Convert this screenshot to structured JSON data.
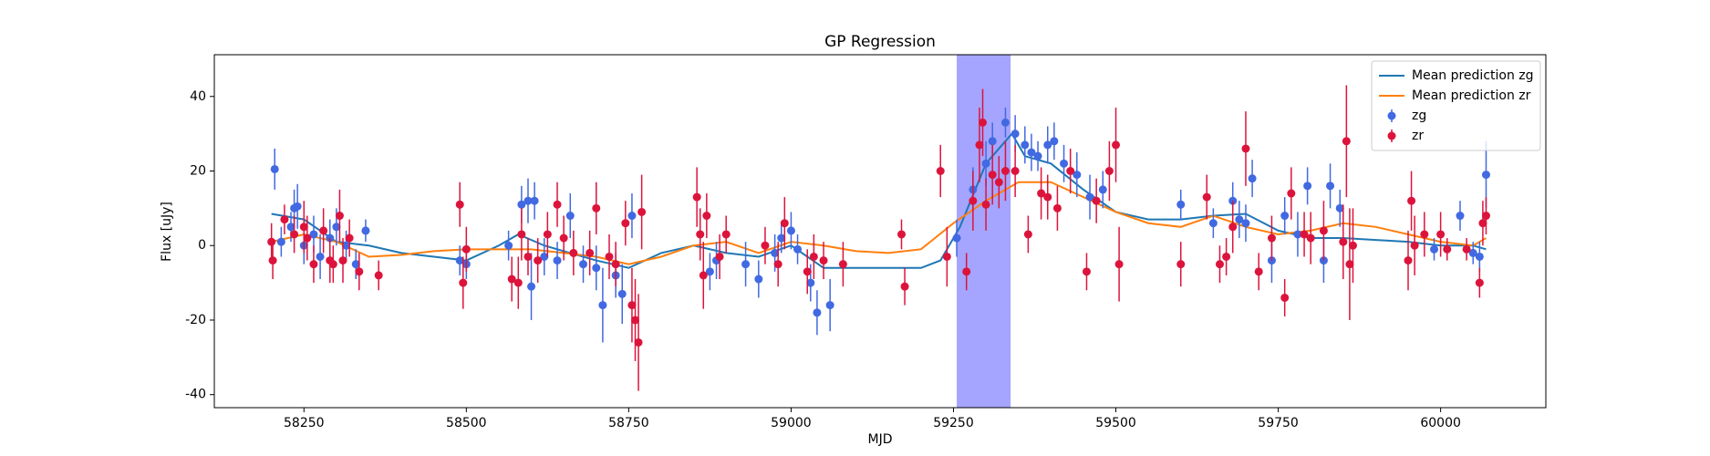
{
  "chart_data": {
    "type": "gp-regression",
    "title": "GP Regression",
    "x_label": "MJD",
    "y_label": "Flux [uJy]",
    "xlim": [
      58112,
      60162
    ],
    "ylim": [
      -43.5,
      51.2
    ],
    "xticks": [
      58250,
      58500,
      58750,
      59000,
      59250,
      59500,
      59750,
      60000
    ],
    "yticks": [
      -40,
      -20,
      0,
      20,
      40
    ],
    "legend": "upper right",
    "grid": false,
    "shaded_region": {
      "x": [
        59255,
        59338
      ],
      "color": "#a5a5ff"
    },
    "series": [
      {
        "name": "Mean prediction zg",
        "style": "line",
        "color": "#1f77b4",
        "x": [
          58200,
          58250,
          58300,
          58350,
          58400,
          58450,
          58500,
          58550,
          58580,
          58620,
          58660,
          58700,
          58750,
          58800,
          58850,
          58900,
          58950,
          59000,
          59050,
          59100,
          59150,
          59200,
          59230,
          59260,
          59300,
          59340,
          59360,
          59400,
          59450,
          59500,
          59550,
          59600,
          59650,
          59700,
          59750,
          59800,
          59850,
          59900,
          59950,
          60000,
          60050,
          60070
        ],
        "values": [
          8.5,
          7,
          1,
          0,
          -2,
          -3,
          -4,
          0,
          3,
          0,
          -2,
          -4,
          -6,
          -2,
          0,
          -2,
          -3,
          0,
          -6,
          -6,
          -6,
          -6,
          -4,
          5,
          22,
          30,
          24,
          22,
          15,
          9,
          7,
          7,
          8,
          8.5,
          4,
          2,
          2,
          1.5,
          1,
          0,
          0,
          -1
        ]
      },
      {
        "name": "Mean prediction zr",
        "style": "line",
        "color": "#ff7f0e",
        "x": [
          58200,
          58250,
          58300,
          58350,
          58400,
          58450,
          58500,
          58550,
          58600,
          58650,
          58700,
          58750,
          58800,
          58850,
          58900,
          58950,
          59000,
          59050,
          59100,
          59150,
          59200,
          59250,
          59300,
          59350,
          59400,
          59450,
          59500,
          59550,
          59600,
          59650,
          59700,
          59750,
          59800,
          59850,
          59900,
          59950,
          60000,
          60050,
          60070
        ],
        "values": [
          1,
          3,
          1,
          -3,
          -2.5,
          -1.5,
          -1,
          -1,
          -1,
          -2,
          -3,
          -5,
          -3,
          0,
          1,
          -2,
          1,
          0,
          -1.5,
          -2,
          -1,
          6,
          12,
          17,
          17,
          13,
          9,
          6,
          5,
          8,
          5,
          3,
          4,
          6,
          5,
          3,
          1,
          0,
          2
        ]
      },
      {
        "name": "zg",
        "style": "errorbar",
        "color": "#4169e1",
        "x": [
          58205,
          58215,
          58230,
          58235,
          58240,
          58250,
          58265,
          58275,
          58290,
          58300,
          58315,
          58330,
          58345,
          58490,
          58500,
          58565,
          58585,
          58595,
          58605,
          58600,
          58620,
          58640,
          58660,
          58680,
          58700,
          58710,
          58730,
          58740,
          58755,
          58875,
          58885,
          58930,
          58950,
          58975,
          58985,
          59000,
          59010,
          59030,
          59040,
          59060,
          59255,
          59280,
          59300,
          59310,
          59330,
          59345,
          59360,
          59370,
          59380,
          59395,
          59405,
          59420,
          59440,
          59460,
          59480,
          59600,
          59650,
          59680,
          59690,
          59700,
          59710,
          59740,
          59760,
          59780,
          59795,
          59820,
          59830,
          59845,
          59990,
          60030,
          60050,
          60060,
          60070
        ],
        "values": [
          20.5,
          1,
          5,
          10,
          10.5,
          0,
          3,
          -3,
          2,
          5,
          0,
          -5,
          4,
          -4,
          -5,
          0,
          11,
          12,
          12,
          -11,
          -3,
          -4,
          8,
          -5,
          -6,
          -16,
          -8,
          -13,
          8,
          -7,
          -4,
          -5,
          -9,
          -2,
          2,
          4,
          -1,
          -10,
          -18,
          -16,
          2,
          15,
          22,
          28,
          33,
          30,
          27,
          25,
          24,
          27,
          28,
          22,
          19,
          13,
          15,
          11,
          6,
          12,
          7,
          6,
          18,
          -4,
          8,
          3,
          16,
          -4,
          16,
          10,
          -1,
          8,
          -2,
          -3,
          19
        ],
        "errors": [
          5.5,
          4,
          4,
          5,
          6,
          5,
          5,
          6,
          5,
          5,
          4,
          4,
          3,
          4,
          4,
          4,
          5,
          6,
          5,
          9,
          5,
          5,
          6,
          5,
          6,
          10,
          6,
          8,
          6,
          5,
          5,
          6,
          5,
          5,
          4,
          5,
          4,
          5,
          6,
          7,
          5,
          6,
          6,
          5,
          4,
          5,
          5,
          5,
          4,
          5,
          5,
          5,
          6,
          6,
          5,
          4,
          4,
          5,
          5,
          5,
          5,
          6,
          5,
          6,
          5,
          6,
          6,
          5,
          3,
          4,
          3,
          4,
          9
        ]
      },
      {
        "name": "zr",
        "style": "errorbar",
        "color": "#dc143c",
        "x": [
          58200,
          58202,
          58220,
          58235,
          58250,
          58255,
          58265,
          58280,
          58290,
          58295,
          58305,
          58310,
          58320,
          58335,
          58365,
          58490,
          58495,
          58500,
          58570,
          58580,
          58585,
          58595,
          58610,
          58625,
          58640,
          58650,
          58665,
          58690,
          58700,
          58720,
          58730,
          58745,
          58755,
          58760,
          58765,
          58770,
          58855,
          58860,
          58865,
          58870,
          58890,
          58900,
          58960,
          58980,
          58990,
          59025,
          59035,
          59050,
          59080,
          59170,
          59175,
          59230,
          59240,
          59270,
          59280,
          59290,
          59295,
          59300,
          59310,
          59320,
          59330,
          59345,
          59365,
          59385,
          59395,
          59410,
          59430,
          59455,
          59470,
          59490,
          59500,
          59505,
          59600,
          59640,
          59660,
          59670,
          59680,
          59700,
          59720,
          59740,
          59760,
          59770,
          59790,
          59800,
          59820,
          59850,
          59855,
          59860,
          59865,
          59950,
          59955,
          59960,
          59975,
          60000,
          60010,
          60040,
          60060,
          60065,
          60070
        ],
        "values": [
          1,
          -4,
          7,
          3,
          5,
          2,
          -5,
          4,
          -4,
          -5,
          8,
          -4,
          2,
          -7,
          -8,
          11,
          -10,
          -1,
          -9,
          -10,
          3,
          -3,
          -4,
          3,
          11,
          2,
          -2,
          -2,
          10,
          -3,
          -5,
          6,
          -16,
          -20,
          -26,
          9,
          13,
          3,
          -8,
          8,
          -3,
          3,
          0,
          -5,
          6,
          -7,
          -3,
          -4,
          -5,
          3,
          -11,
          20,
          -3,
          -7,
          12,
          27,
          33,
          11,
          19,
          17,
          20,
          20,
          3,
          14,
          13,
          10,
          20,
          -7,
          12,
          20,
          27,
          -5,
          -5,
          13,
          -5,
          -3,
          5,
          26,
          -7,
          2,
          -14,
          14,
          3,
          2,
          4,
          1,
          28,
          -5,
          0,
          -4,
          12,
          0,
          3,
          3,
          -1,
          -1,
          -10,
          6,
          8
        ],
        "errors": [
          5,
          5,
          4,
          5,
          7,
          6,
          5,
          6,
          6,
          5,
          7,
          6,
          5,
          5,
          4,
          6,
          7,
          6,
          6,
          7,
          7,
          5,
          6,
          6,
          6,
          6,
          6,
          6,
          7,
          6,
          6,
          6,
          10,
          11,
          13,
          10,
          8,
          7,
          9,
          6,
          6,
          5,
          5,
          6,
          7,
          6,
          6,
          5,
          6,
          4,
          5,
          7,
          8,
          5,
          8,
          10,
          9,
          7,
          8,
          7,
          8,
          7,
          5,
          7,
          6,
          6,
          6,
          5,
          6,
          8,
          10,
          10,
          6,
          6,
          5,
          5,
          7,
          10,
          5,
          6,
          5,
          7,
          6,
          7,
          8,
          10,
          15,
          15,
          10,
          8,
          8,
          8,
          6,
          6,
          3,
          3,
          4,
          6,
          5
        ]
      }
    ]
  }
}
